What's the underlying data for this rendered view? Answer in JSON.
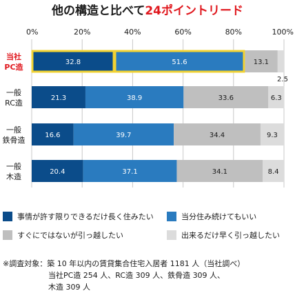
{
  "chart_data": {
    "type": "bar",
    "orientation": "horizontal",
    "stacked": true,
    "title_parts": [
      {
        "text": "他の構造と比べて",
        "color": "#1a1a1a"
      },
      {
        "text": "24ポイントリード",
        "color": "#e0181e"
      }
    ],
    "xlim": [
      0,
      100
    ],
    "x_ticks": [
      "0%",
      "20%",
      "40%",
      "60%",
      "80%",
      "100%"
    ],
    "categories": [
      {
        "lines": [
          "当社",
          "PC造"
        ],
        "color": "#e0181e",
        "highlight": true
      },
      {
        "lines": [
          "一般",
          "RC造"
        ],
        "color": "#1a1a1a",
        "highlight": false
      },
      {
        "lines": [
          "一般",
          "鉄骨造"
        ],
        "color": "#1a1a1a",
        "highlight": false
      },
      {
        "lines": [
          "一般",
          "木造"
        ],
        "color": "#1a1a1a",
        "highlight": false
      }
    ],
    "series": [
      {
        "name": "事情が許す限りできるだけ長く住みたい",
        "color": "#0b4c8a",
        "label_color": "#ffffff",
        "values": [
          32.8,
          21.3,
          16.6,
          20.4
        ],
        "labels": [
          "32.8",
          "21.3",
          "16.6",
          "20.4"
        ]
      },
      {
        "name": "当分住み続けてもいい",
        "color": "#2a7bbf",
        "label_color": "#ffffff",
        "values": [
          51.6,
          38.9,
          39.7,
          37.1
        ],
        "labels": [
          "51.6",
          "38.9",
          "39.7",
          "37.1"
        ]
      },
      {
        "name": "すぐにではないが引っ越したい",
        "color": "#bfbfbf",
        "label_color": "#1a1a1a",
        "values": [
          13.1,
          33.6,
          34.4,
          34.1
        ],
        "labels": [
          "13.1",
          "33.6",
          "34.4",
          "34.1"
        ]
      },
      {
        "name": "出来るだけ早く引っ越したい",
        "color": "#dcdcdc",
        "label_color": "#1a1a1a",
        "values": [
          2.5,
          6.3,
          9.3,
          8.4
        ],
        "labels": [
          "2.5",
          "6.3",
          "9.3",
          "8.4"
        ]
      }
    ],
    "highlight_color": "#f2d232",
    "grid": true,
    "legend_position": "bottom"
  },
  "note": {
    "label": "※調査対象：",
    "lines": [
      "築 10 年以内の賃貸集合住宅入居者 1181 人（当社調べ）",
      "当社PC造 254 人、RC造 309 人、鉄骨造 309 人、",
      "木造 309 人"
    ]
  }
}
